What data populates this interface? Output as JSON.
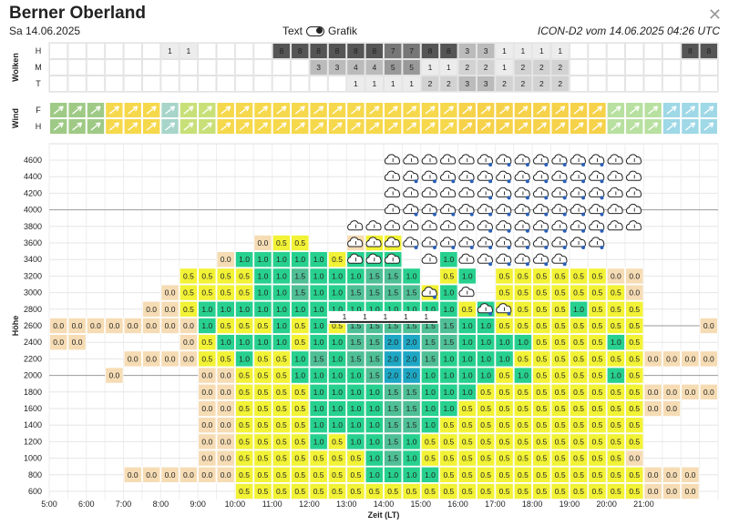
{
  "header": {
    "title": "Berner Oberland",
    "date": "Sa 14.06.2025",
    "toggle_left": "Text",
    "toggle_right": "Grafik",
    "model": "ICON-D2 vom 14.06.2025 04:26 UTC"
  },
  "sections": {
    "clouds": "Wolken",
    "wind": "Wind",
    "height": "Höhe"
  },
  "cloud_rows": [
    "H",
    "M",
    "T"
  ],
  "wind_rows": [
    "F",
    "H"
  ],
  "x_axis": {
    "title": "Zeit (LT)",
    "ticks": [
      "5:00",
      "6:00",
      "7:00",
      "8:00",
      "9:00",
      "10:00",
      "11:00",
      "12:00",
      "13:00",
      "14:00",
      "15:00",
      "16:00",
      "17:00",
      "18:00",
      "19:00",
      "20:00",
      "21:00"
    ]
  },
  "y_ticks": [
    600,
    800,
    1000,
    1200,
    1400,
    1600,
    1800,
    2000,
    2200,
    2400,
    2600,
    2800,
    3000,
    3200,
    3400,
    3600,
    3800,
    4000,
    4200,
    4400,
    4600
  ],
  "clouds": {
    "H": [
      "",
      "",
      "",
      "",
      "",
      "",
      "1",
      "1",
      "",
      "",
      "",
      "",
      "8",
      "8",
      "8",
      "8",
      "8",
      "8",
      "7",
      "7",
      "8",
      "8",
      "3",
      "3",
      "1",
      "1",
      "1",
      "1",
      "",
      "",
      "",
      "",
      "",
      "",
      "8",
      "8"
    ],
    "M": [
      "",
      "",
      "",
      "",
      "",
      "",
      "",
      "",
      "",
      "",
      "",
      "",
      "",
      "",
      "3",
      "3",
      "4",
      "4",
      "5",
      "5",
      "1",
      "1",
      "2",
      "2",
      "1",
      "2",
      "2",
      "2",
      "",
      "",
      "",
      "",
      "",
      "",
      "",
      ""
    ],
    "T": [
      "",
      "",
      "",
      "",
      "",
      "",
      "",
      "",
      "",
      "",
      "",
      "",
      "",
      "",
      "",
      "",
      "1",
      "1",
      "1",
      "1",
      "2",
      "2",
      "3",
      "3",
      "2",
      "2",
      "2",
      "2",
      "",
      "",
      "",
      "",
      "",
      "",
      "",
      ""
    ]
  },
  "thermal_grid": {
    "600": [
      "",
      "",
      "",
      "",
      "",
      "",
      "",
      "",
      "",
      "",
      "0.5",
      "0.5",
      "0.5",
      "0.5",
      "0.5",
      "0.5",
      "0.5",
      "0.5",
      "0.5",
      "0.5",
      "0.5",
      "0.5",
      "0.5",
      "0.5",
      "0.5",
      "0.5",
      "0.5",
      "0.5",
      "0.5",
      "0.5",
      "0.5",
      "0.5",
      "0.0",
      "0.0",
      "0.0",
      ""
    ],
    "800": [
      "",
      "",
      "",
      "",
      "0.0",
      "0.0",
      "0.0",
      "0.0",
      "0.0",
      "0.0",
      "0.5",
      "0.5",
      "0.5",
      "0.5",
      "0.5",
      "0.5",
      "0.5",
      "1.0",
      "1.0",
      "1.0",
      "1.0",
      "0.5",
      "0.5",
      "0.5",
      "0.5",
      "0.5",
      "0.5",
      "0.5",
      "0.5",
      "0.5",
      "0.5",
      "0.5",
      "0.0",
      "0.0",
      "0.0",
      ""
    ],
    "1000": [
      "",
      "",
      "",
      "",
      "",
      "",
      "",
      "",
      "0.0",
      "0.0",
      "0.5",
      "0.5",
      "0.5",
      "0.5",
      "0.5",
      "0.5",
      "0.5",
      "1.0",
      "1.5",
      "1.0",
      "0.5",
      "0.5",
      "0.5",
      "0.5",
      "0.5",
      "0.5",
      "0.5",
      "0.5",
      "0.5",
      "0.5",
      "0.5",
      "0.0",
      "",
      "",
      "",
      ""
    ],
    "1200": [
      "",
      "",
      "",
      "",
      "",
      "",
      "",
      "",
      "0.0",
      "0.0",
      "0.5",
      "0.5",
      "0.5",
      "0.5",
      "1.0",
      "0.5",
      "1.0",
      "1.0",
      "1.5",
      "1.0",
      "0.5",
      "0.5",
      "0.5",
      "0.5",
      "0.5",
      "0.5",
      "0.5",
      "0.5",
      "0.5",
      "0.5",
      "0.5",
      "0.5",
      "",
      "",
      "",
      ""
    ],
    "1400": [
      "",
      "",
      "",
      "",
      "",
      "",
      "",
      "",
      "0.0",
      "0.0",
      "0.5",
      "0.5",
      "0.5",
      "0.5",
      "1.0",
      "1.0",
      "1.0",
      "1.0",
      "1.5",
      "1.5",
      "1.0",
      "0.5",
      "0.5",
      "0.5",
      "0.5",
      "0.5",
      "0.5",
      "0.5",
      "0.5",
      "0.5",
      "0.5",
      "0.5",
      "",
      "",
      "",
      ""
    ],
    "1600": [
      "",
      "",
      "",
      "",
      "",
      "",
      "",
      "",
      "0.0",
      "0.0",
      "0.5",
      "0.5",
      "0.5",
      "0.5",
      "1.0",
      "1.0",
      "1.0",
      "1.0",
      "1.5",
      "1.5",
      "1.0",
      "1.0",
      "0.5",
      "0.5",
      "0.5",
      "0.5",
      "0.5",
      "0.5",
      "0.5",
      "0.5",
      "0.5",
      "0.5",
      "0.0",
      "0.0",
      "",
      ""
    ],
    "1800": [
      "",
      "",
      "",
      "",
      "",
      "",
      "",
      "",
      "0.0",
      "0.0",
      "0.5",
      "0.5",
      "0.5",
      "0.5",
      "1.0",
      "1.0",
      "1.0",
      "1.0",
      "1.5",
      "1.5",
      "1.0",
      "1.0",
      "1.0",
      "0.5",
      "0.5",
      "0.5",
      "0.5",
      "0.5",
      "0.5",
      "0.5",
      "0.5",
      "0.5",
      "0.0",
      "0.0",
      "0.0",
      "0.0"
    ],
    "2000": [
      "",
      "",
      "",
      "0.0",
      "",
      "",
      "",
      "",
      "0.0",
      "0.0",
      "0.5",
      "0.5",
      "0.5",
      "1.0",
      "1.0",
      "1.0",
      "1.0",
      "1.5",
      "2.0",
      "2.0",
      "1.0",
      "1.0",
      "1.0",
      "1.0",
      "0.5",
      "1.0",
      "0.5",
      "0.5",
      "0.5",
      "0.5",
      "1.0",
      "0.5",
      "",
      "",
      "",
      ""
    ],
    "2200": [
      "",
      "",
      "",
      "",
      "0.0",
      "0.0",
      "0.0",
      "0.0",
      "0.5",
      "0.5",
      "1.0",
      "0.5",
      "0.5",
      "1.0",
      "1.5",
      "1.0",
      "1.5",
      "1.5",
      "2.0",
      "2.0",
      "1.5",
      "1.0",
      "1.0",
      "1.0",
      "1.0",
      "0.5",
      "0.5",
      "0.5",
      "0.5",
      "0.5",
      "0.5",
      "0.5",
      "0.0",
      "0.0",
      "0.0",
      "0.0"
    ],
    "2400": [
      "0.0",
      "0.0",
      "",
      "",
      "",
      "",
      "",
      "0.0",
      "0.5",
      "1.0",
      "1.0",
      "1.0",
      "1.0",
      "0.5",
      "1.0",
      "1.0",
      "1.5",
      "1.5",
      "2.0",
      "2.0",
      "1.5",
      "1.5",
      "1.0",
      "1.0",
      "1.0",
      "1.0",
      "0.5",
      "0.5",
      "0.5",
      "0.5",
      "1.0",
      "0.5",
      "",
      "",
      "",
      ""
    ],
    "2600": [
      "0.0",
      "0.0",
      "0.0",
      "0.0",
      "0.0",
      "0.0",
      "0.0",
      "0.0",
      "1.0",
      "0.5",
      "0.5",
      "0.5",
      "1.0",
      "0.5",
      "1.0",
      "0.5",
      "1.5",
      "1.5",
      "1.5",
      "1.5",
      "1.5",
      "1.5",
      "1.0",
      "1.0",
      "0.5",
      "0.5",
      "0.5",
      "0.5",
      "0.5",
      "0.5",
      "0.5",
      "0.5",
      "",
      "",
      "",
      "0.0"
    ],
    "2800": [
      "",
      "",
      "",
      "",
      "",
      "0.0",
      "0.0",
      "0.5",
      "1.0",
      "1.0",
      "1.0",
      "1.0",
      "1.0",
      "1.0",
      "1.0",
      "1.0",
      "1.0",
      "1.0",
      "1.0",
      "1.0",
      "1.0",
      "1.0",
      "0.5",
      "1.0",
      "0.5",
      "0.5",
      "0.5",
      "0.5",
      "1.0",
      "0.5",
      "0.5",
      "0.5",
      "",
      "",
      "",
      ""
    ],
    "3000": [
      "",
      "",
      "",
      "",
      "",
      "",
      "0.0",
      "0.5",
      "0.5",
      "0.5",
      "0.5",
      "1.0",
      "1.0",
      "1.5",
      "1.0",
      "1.0",
      "1.5",
      "1.5",
      "1.5",
      "1.5",
      "0.5",
      "1.0",
      "",
      "",
      "0.5",
      "0.5",
      "0.5",
      "0.5",
      "0.5",
      "0.5",
      "0.5",
      "0.0",
      "",
      "",
      "",
      ""
    ],
    "3200": [
      "",
      "",
      "",
      "",
      "",
      "",
      "",
      "0.5",
      "0.5",
      "0.5",
      "0.5",
      "1.0",
      "1.0",
      "1.5",
      "1.0",
      "1.0",
      "1.0",
      "1.5",
      "1.5",
      "1.0",
      "",
      "0.5",
      "1.0",
      "",
      "0.5",
      "0.5",
      "0.5",
      "0.5",
      "0.5",
      "0.5",
      "0.0",
      "0.0",
      "",
      "",
      "",
      ""
    ],
    "3400": [
      "",
      "",
      "",
      "",
      "",
      "",
      "",
      "",
      "",
      "0.0",
      "1.0",
      "1.0",
      "1.0",
      "1.0",
      "1.0",
      "0.5",
      "1.0",
      "1.0",
      "1.0",
      "",
      "",
      "1.0",
      "",
      "",
      "",
      "",
      "",
      "",
      "",
      "",
      "",
      "",
      "",
      "",
      "",
      ""
    ],
    "3600": [
      "",
      "",
      "",
      "",
      "",
      "",
      "",
      "",
      "",
      "",
      "",
      "0.0",
      "0.5",
      "0.5",
      "",
      "",
      "0.0",
      "0.5",
      "0.5",
      "",
      "",
      "",
      "",
      "",
      "",
      "",
      "",
      "",
      "",
      "",
      "",
      "",
      "",
      "",
      "",
      ""
    ],
    "3800": [
      "",
      "",
      "",
      "",
      "",
      "",
      "",
      "",
      "",
      "",
      "",
      "",
      "",
      "",
      "",
      "",
      "",
      "",
      "",
      "",
      "",
      "",
      "",
      "",
      "",
      "",
      "",
      "",
      "",
      "",
      "",
      "",
      "",
      "",
      "",
      ""
    ],
    "4000": [
      "",
      "",
      "",
      "",
      "",
      "",
      "",
      "",
      "",
      "",
      "",
      "",
      "",
      "",
      "",
      "",
      "",
      "",
      "",
      "",
      "",
      "",
      "",
      "",
      "",
      "",
      "",
      "",
      "",
      "",
      "",
      "",
      "",
      "",
      "",
      ""
    ],
    "4200": [
      "",
      "",
      "",
      "",
      "",
      "",
      "",
      "",
      "",
      "",
      "",
      "",
      "",
      "",
      "",
      "",
      "",
      "",
      "",
      "",
      "",
      "",
      "",
      "",
      "",
      "",
      "",
      "",
      "",
      "",
      "",
      "",
      "",
      "",
      "",
      ""
    ],
    "4400": [
      "",
      "",
      "",
      "",
      "",
      "",
      "",
      "",
      "",
      "",
      "",
      "",
      "",
      "",
      "",
      "",
      "",
      "",
      "",
      "",
      "",
      "",
      "",
      "",
      "",
      "",
      "",
      "",
      "",
      "",
      "",
      "",
      "",
      "",
      "",
      ""
    ],
    "4600": [
      "",
      "",
      "",
      "",
      "",
      "",
      "",
      "",
      "",
      "",
      "",
      "",
      "",
      "",
      "",
      "",
      "",
      "",
      "",
      "",
      "",
      "",
      "",
      "",
      "",
      "",
      "",
      "",
      "",
      "",
      "",
      "",
      "",
      "",
      "",
      ""
    ]
  },
  "cloud_base_labels": [
    "1",
    "1",
    "1",
    "1",
    "1"
  ],
  "colors": {
    "v0": "#f6dcb4",
    "v05": "#f2f236",
    "v10": "#27d08e",
    "v15": "#4fbf95",
    "v20": "#1ea7c4",
    "wind_fast": "#9fd8e6",
    "accent": "#222222"
  }
}
